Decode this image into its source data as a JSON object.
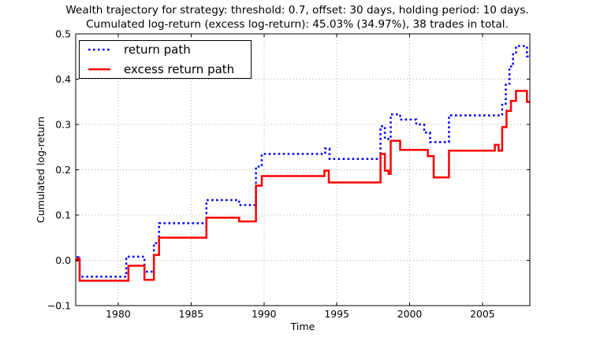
{
  "title": {
    "line1": "Wealth trajectory for strategy: threshold: 0.7, offset: 30 days, holding period: 10 days.",
    "line2": "Cumulated log-return (excess log-return): 45.03% (34.97%), 38 trades in total."
  },
  "axes": {
    "xlabel": "Time",
    "ylabel": "Cumulated log-return",
    "x_ticks": [
      1980,
      1985,
      1990,
      1995,
      2000,
      2005
    ],
    "x_tick_labels": [
      "1980",
      "1985",
      "1990",
      "1995",
      "2000",
      "2005"
    ],
    "y_ticks": [
      -0.1,
      0.0,
      0.1,
      0.2,
      0.3,
      0.4,
      0.5
    ],
    "y_tick_labels": [
      "−0.1",
      "0.0",
      "0.1",
      "0.2",
      "0.3",
      "0.4",
      "0.5"
    ],
    "grid": true
  },
  "legend": {
    "position": "upper-left",
    "items": [
      {
        "label": "return path",
        "color": "#0000ff",
        "style": "dotted"
      },
      {
        "label": "excess return path",
        "color": "#ff0000",
        "style": "solid"
      }
    ]
  },
  "chart_data": {
    "type": "line",
    "subtype": "step-post",
    "xlim": [
      1977.08,
      2008.25
    ],
    "ylim": [
      -0.1,
      0.5
    ],
    "xlabel": "Time",
    "ylabel": "Cumulated log-return",
    "grid": "dotted",
    "final_stats": {
      "cumulated_log_return_pct": 45.03,
      "excess_log_return_pct": 34.97,
      "trades_total": 38
    },
    "series": [
      {
        "name": "return path",
        "color": "#0000ff",
        "style": "dotted",
        "points": [
          [
            1977.08,
            0.0
          ],
          [
            1977.2,
            0.007
          ],
          [
            1977.35,
            -0.036
          ],
          [
            1980.55,
            0.008
          ],
          [
            1981.8,
            -0.025
          ],
          [
            1982.45,
            0.038
          ],
          [
            1982.8,
            0.082
          ],
          [
            1986.05,
            0.133
          ],
          [
            1988.3,
            0.122
          ],
          [
            1989.45,
            0.207
          ],
          [
            1989.85,
            0.235
          ],
          [
            1994.2,
            0.247
          ],
          [
            1994.5,
            0.224
          ],
          [
            1998.0,
            0.296
          ],
          [
            1998.3,
            0.268
          ],
          [
            1998.7,
            0.322
          ],
          [
            1999.35,
            0.311
          ],
          [
            2000.45,
            0.3
          ],
          [
            2001.0,
            0.282
          ],
          [
            2001.4,
            0.261
          ],
          [
            2002.7,
            0.32
          ],
          [
            2006.35,
            0.346
          ],
          [
            2006.6,
            0.39
          ],
          [
            2006.85,
            0.428
          ],
          [
            2007.1,
            0.455
          ],
          [
            2007.3,
            0.473
          ],
          [
            2008.05,
            0.4503
          ]
        ]
      },
      {
        "name": "excess return path",
        "color": "#ff0000",
        "style": "solid",
        "points": [
          [
            1977.08,
            0.0
          ],
          [
            1977.2,
            0.004
          ],
          [
            1977.35,
            -0.045
          ],
          [
            1980.7,
            -0.012
          ],
          [
            1981.8,
            -0.043
          ],
          [
            1982.45,
            0.012
          ],
          [
            1982.8,
            0.05
          ],
          [
            1986.05,
            0.094
          ],
          [
            1988.3,
            0.086
          ],
          [
            1989.45,
            0.165
          ],
          [
            1989.85,
            0.186
          ],
          [
            1994.15,
            0.198
          ],
          [
            1994.45,
            0.172
          ],
          [
            1998.0,
            0.235
          ],
          [
            1998.3,
            0.198
          ],
          [
            1998.55,
            0.191
          ],
          [
            1998.7,
            0.264
          ],
          [
            1999.35,
            0.244
          ],
          [
            2001.25,
            0.23
          ],
          [
            2001.65,
            0.183
          ],
          [
            2002.7,
            0.242
          ],
          [
            2005.85,
            0.255
          ],
          [
            2006.1,
            0.242
          ],
          [
            2006.35,
            0.294
          ],
          [
            2006.65,
            0.33
          ],
          [
            2006.95,
            0.352
          ],
          [
            2007.3,
            0.374
          ],
          [
            2008.05,
            0.3497
          ]
        ]
      }
    ]
  }
}
